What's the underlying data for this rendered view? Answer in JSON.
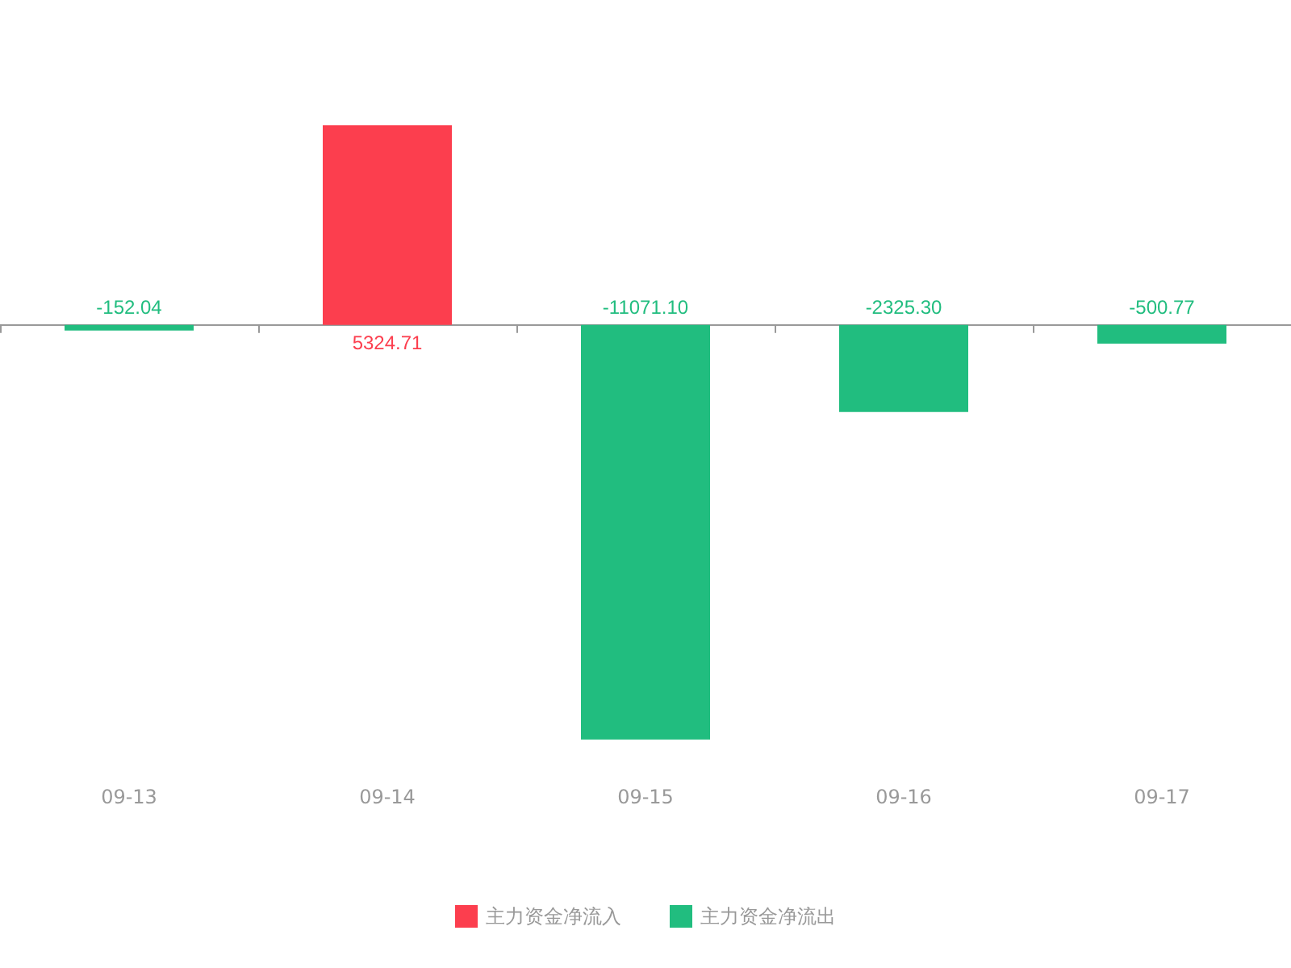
{
  "chart_data": {
    "type": "bar",
    "categories": [
      "09-13",
      "09-14",
      "09-15",
      "09-16",
      "09-17"
    ],
    "stacked": true,
    "legend": "bottom",
    "grid": false,
    "series": [
      {
        "name": "主力资金净流入",
        "color": "#fc3e4e",
        "values": [
          null,
          5324.71,
          null,
          null,
          null
        ],
        "value_labels": [
          null,
          "5324.71",
          null,
          null,
          null
        ]
      },
      {
        "name": "主力资金净流出",
        "color": "#21bd7f",
        "values": [
          -152.04,
          null,
          -11071.1,
          -2325.3,
          -500.77
        ],
        "value_labels": [
          "-152.04",
          null,
          "-11071.10",
          "-2325.30",
          "-500.77"
        ]
      }
    ]
  }
}
